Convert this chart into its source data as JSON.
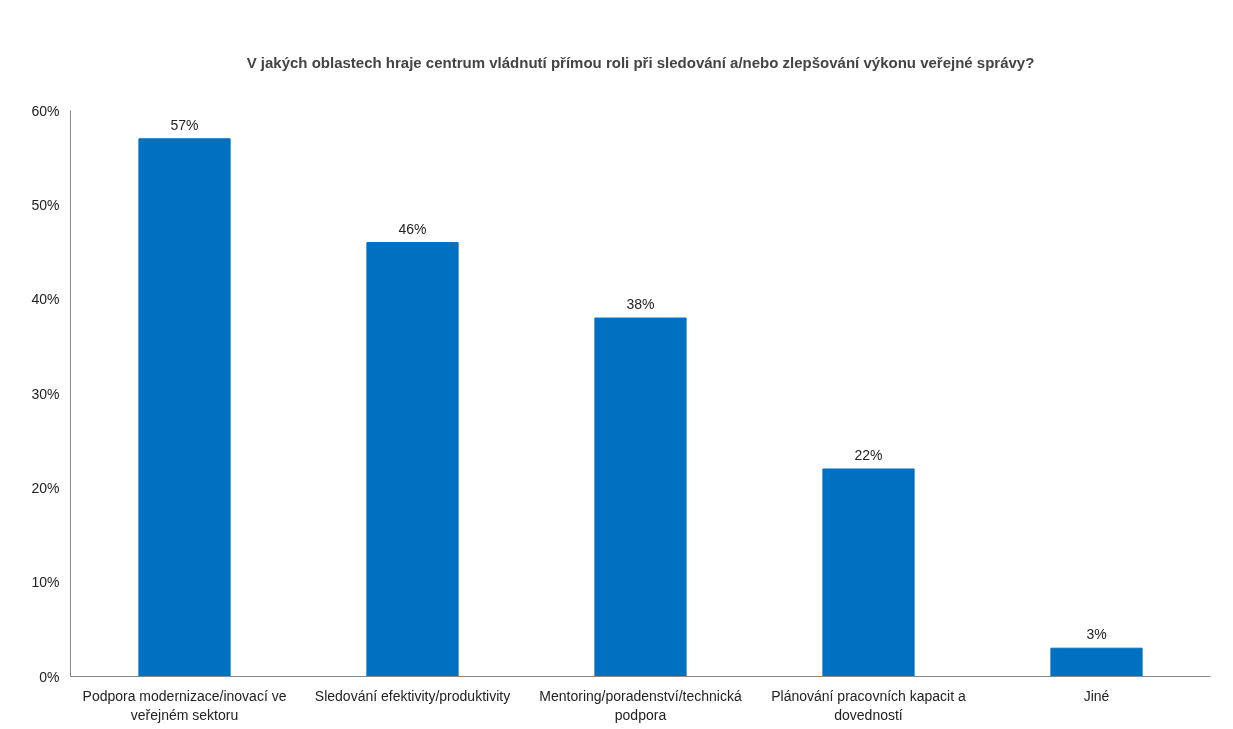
{
  "chart_data": {
    "type": "bar",
    "title": "V jakých oblastech hraje centrum vládnutí přímou roli při sledování a/nebo zlepšování výkonu veřejné správy?",
    "categories": [
      "Podpora modernizace/inovací ve veřejném sektoru",
      "Sledování efektivity/produktivity",
      "Mentoring/poradenství/technická podpora",
      "Plánování pracovních kapacit a dovedností",
      "Jiné"
    ],
    "values": [
      57,
      46,
      38,
      22,
      3
    ],
    "value_labels": [
      "57%",
      "46%",
      "38%",
      "22%",
      "3%"
    ],
    "color": "#0070c0",
    "ylim": [
      0,
      60
    ],
    "yticks": [
      {
        "value": 0,
        "label": "0%"
      },
      {
        "value": 10,
        "label": "10%"
      },
      {
        "value": 20,
        "label": "20%"
      },
      {
        "value": 30,
        "label": "30%"
      },
      {
        "value": 40,
        "label": "40%"
      },
      {
        "value": 50,
        "label": "50%"
      },
      {
        "value": 60,
        "label": "60%"
      }
    ],
    "grid": false
  }
}
